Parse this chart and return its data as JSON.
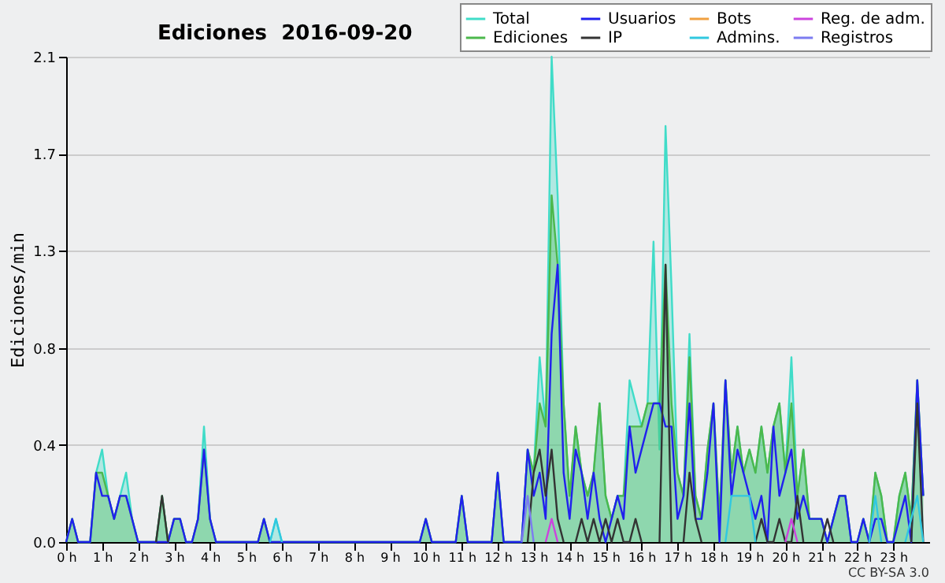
{
  "chart_data": {
    "type": "line",
    "title": "Ediciones  2016-09-20",
    "ylabel": "Ediciones/min",
    "annotations": [
      "CC BY-SA 3.0"
    ],
    "xlim": [
      0,
      24
    ],
    "ylim": [
      0,
      2.1
    ],
    "xticks": [
      {
        "value": 0,
        "label": "0 h"
      },
      {
        "value": 1,
        "label": "1 h"
      },
      {
        "value": 2,
        "label": "2 h"
      },
      {
        "value": 3,
        "label": "3 h"
      },
      {
        "value": 4,
        "label": "4 h"
      },
      {
        "value": 5,
        "label": "5 h"
      },
      {
        "value": 6,
        "label": "6 h"
      },
      {
        "value": 7,
        "label": "7 h"
      },
      {
        "value": 8,
        "label": "8 h"
      },
      {
        "value": 9,
        "label": "9 h"
      },
      {
        "value": 10,
        "label": "10 h"
      },
      {
        "value": 11,
        "label": "11 h"
      },
      {
        "value": 12,
        "label": "12 h"
      },
      {
        "value": 13,
        "label": "13 h"
      },
      {
        "value": 14,
        "label": "14 h"
      },
      {
        "value": 15,
        "label": "15 h"
      },
      {
        "value": 16,
        "label": "16 h"
      },
      {
        "value": 17,
        "label": "17 h"
      },
      {
        "value": 18,
        "label": "18 h"
      },
      {
        "value": 19,
        "label": "19 h"
      },
      {
        "value": 20,
        "label": "20 h"
      },
      {
        "value": 21,
        "label": "21 h"
      },
      {
        "value": 22,
        "label": "22 h"
      },
      {
        "value": 23,
        "label": "23 h"
      }
    ],
    "yticks": [
      {
        "value": 0,
        "label": "0.0"
      },
      {
        "value": 0.42,
        "label": "0.4"
      },
      {
        "value": 0.84,
        "label": "0.8"
      },
      {
        "value": 1.26,
        "label": "1.3"
      },
      {
        "value": 1.68,
        "label": "1.7"
      },
      {
        "value": 2.1,
        "label": "2.1"
      }
    ],
    "grid": "y",
    "legend": "top right",
    "x": [
      0,
      0.167,
      0.333,
      0.5,
      0.667,
      0.833,
      1,
      1.167,
      1.333,
      1.5,
      1.667,
      1.833,
      2,
      2.167,
      2.333,
      2.5,
      2.667,
      2.833,
      3,
      3.167,
      3.333,
      3.5,
      3.667,
      3.833,
      4,
      4.167,
      4.333,
      4.5,
      4.667,
      4.833,
      5,
      5.167,
      5.333,
      5.5,
      5.667,
      5.833,
      6,
      6.167,
      6.333,
      6.5,
      6.667,
      6.833,
      7,
      7.167,
      7.333,
      7.5,
      7.667,
      7.833,
      8,
      8.167,
      8.333,
      8.5,
      8.667,
      8.833,
      9,
      9.167,
      9.333,
      9.5,
      9.667,
      9.833,
      10,
      10.167,
      10.333,
      10.5,
      10.667,
      10.833,
      11,
      11.167,
      11.333,
      11.5,
      11.667,
      11.833,
      12,
      12.167,
      12.333,
      12.5,
      12.667,
      12.833,
      13,
      13.167,
      13.333,
      13.5,
      13.667,
      13.833,
      14,
      14.167,
      14.333,
      14.5,
      14.667,
      14.833,
      15,
      15.167,
      15.333,
      15.5,
      15.667,
      15.833,
      16,
      16.167,
      16.333,
      16.5,
      16.667,
      16.833,
      17,
      17.167,
      17.333,
      17.5,
      17.667,
      17.833,
      18,
      18.167,
      18.333,
      18.5,
      18.667,
      18.833,
      19,
      19.167,
      19.333,
      19.5,
      19.667,
      19.833,
      20,
      20.167,
      20.333,
      20.5,
      20.667,
      20.833,
      21,
      21.167,
      21.333,
      21.5,
      21.667,
      21.833,
      22,
      22.167,
      22.333,
      22.5,
      22.667,
      22.833,
      23,
      23.167,
      23.333,
      23.5,
      23.667,
      23.833
    ],
    "series": [
      {
        "name": "Total",
        "type": "area",
        "color": "#40dcc8",
        "values": [
          0,
          0.1,
          0,
          0,
          0,
          0.3,
          0.4,
          0.2,
          0.1,
          0.2,
          0.3,
          0.1,
          0,
          0,
          0,
          0,
          0.2,
          0,
          0.1,
          0.1,
          0,
          0,
          0.1,
          0.5,
          0.1,
          0,
          0,
          0,
          0,
          0,
          0,
          0,
          0,
          0.1,
          0,
          0.1,
          0,
          0,
          0,
          0,
          0,
          0,
          0,
          0,
          0,
          0,
          0,
          0,
          0,
          0,
          0,
          0,
          0,
          0,
          0,
          0,
          0,
          0,
          0,
          0,
          0.1,
          0,
          0,
          0,
          0,
          0,
          0.2,
          0,
          0,
          0,
          0,
          0,
          0.3,
          0,
          0,
          0,
          0,
          0.4,
          0.3,
          0.8,
          0.5,
          2.1,
          1.5,
          0.6,
          0.2,
          0.5,
          0.3,
          0.2,
          0.3,
          0.6,
          0.2,
          0.1,
          0.2,
          0.2,
          0.7,
          0.6,
          0.5,
          0.6,
          1.3,
          0.4,
          1.8,
          1.1,
          0.3,
          0.2,
          0.9,
          0.2,
          0.1,
          0.4,
          0.6,
          0.1,
          0.7,
          0.3,
          0.5,
          0.3,
          0.4,
          0.3,
          0.5,
          0.3,
          0.5,
          0.6,
          0.3,
          0.8,
          0.2,
          0.4,
          0.1,
          0.1,
          0.1,
          0,
          0.1,
          0.2,
          0.2,
          0,
          0,
          0.1,
          0,
          0.3,
          0.2,
          0,
          0,
          0.2,
          0.3,
          0.1,
          0.7,
          0.2
        ]
      },
      {
        "name": "Ediciones",
        "type": "area",
        "color": "#4cb84c",
        "values": [
          0,
          0.1,
          0,
          0,
          0,
          0.3,
          0.3,
          0.2,
          0.1,
          0.2,
          0.2,
          0.1,
          0,
          0,
          0,
          0,
          0.2,
          0,
          0.1,
          0.1,
          0,
          0,
          0.1,
          0.4,
          0.1,
          0,
          0,
          0,
          0,
          0,
          0,
          0,
          0,
          0.1,
          0,
          0,
          0,
          0,
          0,
          0,
          0,
          0,
          0,
          0,
          0,
          0,
          0,
          0,
          0,
          0,
          0,
          0,
          0,
          0,
          0,
          0,
          0,
          0,
          0,
          0,
          0.1,
          0,
          0,
          0,
          0,
          0,
          0.2,
          0,
          0,
          0,
          0,
          0,
          0.3,
          0,
          0,
          0,
          0,
          0.4,
          0.3,
          0.6,
          0.5,
          1.5,
          1.2,
          0.6,
          0.2,
          0.5,
          0.3,
          0.2,
          0.3,
          0.6,
          0.2,
          0.1,
          0.2,
          0.2,
          0.5,
          0.5,
          0.5,
          0.6,
          0.6,
          0.6,
          1.2,
          0.6,
          0.3,
          0.2,
          0.8,
          0.2,
          0.1,
          0.4,
          0.6,
          0.1,
          0.7,
          0.3,
          0.5,
          0.3,
          0.4,
          0.3,
          0.5,
          0.3,
          0.5,
          0.6,
          0.3,
          0.6,
          0.2,
          0.4,
          0.1,
          0.1,
          0.1,
          0,
          0.1,
          0.2,
          0.2,
          0,
          0,
          0.1,
          0,
          0.3,
          0.2,
          0,
          0,
          0.2,
          0.3,
          0.1,
          0.7,
          0.2
        ]
      },
      {
        "name": "Usuarios",
        "color": "#2020ee",
        "values": [
          0,
          0.1,
          0,
          0,
          0,
          0.3,
          0.2,
          0.2,
          0.1,
          0.2,
          0.2,
          0.1,
          0,
          0,
          0,
          0,
          0,
          0,
          0.1,
          0.1,
          0,
          0,
          0.1,
          0.4,
          0.1,
          0,
          0,
          0,
          0,
          0,
          0,
          0,
          0,
          0.1,
          0,
          0,
          0,
          0,
          0,
          0,
          0,
          0,
          0,
          0,
          0,
          0,
          0,
          0,
          0,
          0,
          0,
          0,
          0,
          0,
          0,
          0,
          0,
          0,
          0,
          0,
          0.1,
          0,
          0,
          0,
          0,
          0,
          0.2,
          0,
          0,
          0,
          0,
          0,
          0.3,
          0,
          0,
          0,
          0,
          0.4,
          0.2,
          0.3,
          0.1,
          0.9,
          1.2,
          0.3,
          0.1,
          0.4,
          0.3,
          0.1,
          0.3,
          0.1,
          0,
          0.1,
          0.2,
          0.1,
          0.5,
          0.3,
          0.4,
          0.5,
          0.6,
          0.6,
          0.5,
          0.5,
          0.1,
          0.2,
          0.6,
          0.1,
          0.1,
          0.3,
          0.6,
          0,
          0.7,
          0.2,
          0.4,
          0.3,
          0.2,
          0.1,
          0.2,
          0,
          0.5,
          0.2,
          0.3,
          0.4,
          0.1,
          0.2,
          0.1,
          0.1,
          0.1,
          0,
          0.1,
          0.2,
          0.2,
          0,
          0,
          0.1,
          0,
          0.1,
          0.1,
          0,
          0,
          0.1,
          0.2,
          0,
          0.7,
          0.2
        ]
      },
      {
        "name": "IP",
        "color": "#333333",
        "values": [
          null,
          null,
          null,
          null,
          null,
          null,
          null,
          null,
          null,
          null,
          null,
          null,
          null,
          null,
          null,
          0,
          0.2,
          0,
          null,
          null,
          null,
          null,
          null,
          null,
          null,
          null,
          null,
          null,
          null,
          null,
          null,
          null,
          null,
          null,
          null,
          null,
          null,
          null,
          null,
          null,
          null,
          null,
          null,
          null,
          null,
          null,
          null,
          null,
          null,
          null,
          null,
          null,
          null,
          null,
          null,
          null,
          null,
          null,
          null,
          null,
          null,
          null,
          null,
          null,
          null,
          null,
          null,
          null,
          null,
          null,
          null,
          null,
          null,
          null,
          null,
          null,
          null,
          0,
          0.3,
          0.4,
          0.2,
          0.4,
          0.1,
          0,
          null,
          0,
          0.1,
          0,
          0.1,
          0,
          0.1,
          0,
          0.1,
          0,
          0,
          0.1,
          0,
          null,
          null,
          0,
          1.2,
          0,
          null,
          0,
          0.3,
          0.1,
          0,
          null,
          null,
          null,
          null,
          null,
          null,
          null,
          null,
          0,
          0.1,
          0,
          0,
          0.1,
          0,
          0,
          0.2,
          0,
          null,
          null,
          0,
          0.1,
          0,
          null,
          null,
          null,
          null,
          null,
          null,
          null,
          null,
          null,
          null,
          null,
          null,
          0,
          0.6,
          0
        ]
      },
      {
        "name": "Bots",
        "color": "#f0a040",
        "values": [
          null,
          null,
          null,
          null,
          null,
          null,
          null,
          null,
          null,
          null,
          null,
          null,
          null,
          null,
          null,
          null,
          null,
          null,
          null,
          null,
          null,
          null,
          null,
          null,
          null,
          null,
          null,
          null,
          null,
          null,
          null,
          null,
          null,
          null,
          null,
          null,
          null,
          null,
          null,
          null,
          null,
          null,
          null,
          null,
          null,
          null,
          null,
          null,
          null,
          null,
          null,
          null,
          null,
          null,
          null,
          null,
          null,
          null,
          null,
          null,
          null,
          null,
          null,
          null,
          null,
          null,
          null,
          null,
          null,
          null,
          null,
          null,
          null,
          null,
          null,
          null,
          null,
          null,
          null,
          null,
          null,
          null,
          null,
          null,
          null,
          null,
          null,
          null,
          null,
          null,
          null,
          null,
          null,
          null,
          null,
          null,
          null,
          null,
          null,
          null,
          null,
          null,
          null,
          null,
          null,
          null,
          null,
          null,
          null,
          null,
          null,
          null,
          null,
          null,
          null,
          null,
          null,
          null,
          null,
          null,
          null,
          null,
          null,
          null,
          null,
          null,
          null,
          null,
          null,
          null,
          null,
          null,
          null,
          null,
          null,
          null,
          null,
          null,
          null,
          null,
          null,
          null,
          null,
          null
        ]
      },
      {
        "name": "Admins.",
        "color": "#30c8e0",
        "values": [
          null,
          null,
          null,
          null,
          null,
          null,
          null,
          null,
          null,
          null,
          null,
          null,
          null,
          null,
          null,
          null,
          null,
          null,
          null,
          null,
          null,
          null,
          null,
          null,
          null,
          null,
          null,
          null,
          null,
          null,
          null,
          null,
          null,
          null,
          0,
          0.1,
          0,
          null,
          null,
          null,
          null,
          null,
          null,
          null,
          null,
          null,
          null,
          null,
          null,
          null,
          null,
          null,
          null,
          null,
          null,
          null,
          null,
          null,
          null,
          null,
          null,
          null,
          null,
          null,
          null,
          null,
          null,
          null,
          null,
          null,
          null,
          null,
          null,
          null,
          null,
          null,
          null,
          null,
          null,
          null,
          null,
          null,
          null,
          null,
          null,
          null,
          null,
          null,
          null,
          null,
          null,
          null,
          null,
          null,
          null,
          null,
          null,
          null,
          null,
          null,
          null,
          null,
          null,
          null,
          null,
          null,
          null,
          null,
          null,
          null,
          0,
          0.2,
          0.2,
          0.2,
          0.2,
          0,
          null,
          null,
          null,
          null,
          null,
          null,
          null,
          null,
          null,
          null,
          null,
          null,
          null,
          null,
          null,
          null,
          null,
          null,
          0,
          0.2,
          0,
          null,
          null,
          null,
          0,
          0.1,
          0.2,
          0
        ]
      },
      {
        "name": "Reg. de adm.",
        "color": "#cc44dd",
        "values": [
          null,
          null,
          null,
          null,
          null,
          null,
          null,
          null,
          null,
          null,
          null,
          null,
          null,
          null,
          null,
          null,
          null,
          null,
          null,
          null,
          null,
          null,
          null,
          null,
          null,
          null,
          null,
          null,
          null,
          null,
          null,
          null,
          null,
          null,
          null,
          null,
          null,
          null,
          null,
          null,
          null,
          null,
          null,
          null,
          null,
          null,
          null,
          null,
          null,
          null,
          null,
          null,
          null,
          null,
          null,
          null,
          null,
          null,
          null,
          null,
          null,
          null,
          null,
          null,
          null,
          null,
          null,
          null,
          null,
          null,
          null,
          null,
          null,
          null,
          null,
          null,
          null,
          null,
          null,
          null,
          0,
          0.1,
          0,
          null,
          null,
          null,
          null,
          null,
          null,
          null,
          null,
          null,
          null,
          null,
          null,
          null,
          null,
          null,
          null,
          null,
          null,
          null,
          null,
          null,
          null,
          null,
          null,
          null,
          null,
          null,
          null,
          null,
          null,
          null,
          null,
          null,
          null,
          null,
          null,
          null,
          0,
          0.1,
          0,
          null,
          null,
          null,
          null,
          null,
          null,
          null,
          null,
          null,
          null,
          null,
          null,
          null,
          null,
          null,
          null,
          null,
          null,
          null,
          null,
          null
        ]
      },
      {
        "name": "Registros",
        "color": "#7c7cf0",
        "values": [
          null,
          null,
          null,
          null,
          null,
          null,
          null,
          null,
          null,
          null,
          null,
          null,
          null,
          null,
          null,
          null,
          null,
          null,
          null,
          null,
          null,
          null,
          null,
          null,
          null,
          null,
          null,
          null,
          null,
          null,
          null,
          null,
          null,
          null,
          null,
          null,
          null,
          null,
          null,
          null,
          null,
          null,
          null,
          null,
          null,
          null,
          null,
          null,
          null,
          null,
          null,
          null,
          null,
          null,
          null,
          null,
          null,
          null,
          null,
          null,
          null,
          null,
          null,
          null,
          null,
          null,
          null,
          null,
          null,
          null,
          null,
          null,
          null,
          null,
          null,
          null,
          0,
          0.2,
          0,
          null,
          null,
          null,
          null,
          null,
          null,
          null,
          null,
          null,
          null,
          null,
          null,
          null,
          null,
          null,
          null,
          null,
          null,
          null,
          null,
          null,
          null,
          null,
          null,
          null,
          null,
          null,
          null,
          null,
          null,
          null,
          null,
          null,
          null,
          null,
          null,
          null,
          null,
          null,
          null,
          null,
          null,
          null,
          null,
          null,
          null,
          null,
          null,
          null,
          null,
          null,
          null,
          null,
          null,
          null,
          null,
          null,
          null,
          null,
          null,
          null,
          null,
          null,
          null,
          null
        ]
      }
    ]
  }
}
